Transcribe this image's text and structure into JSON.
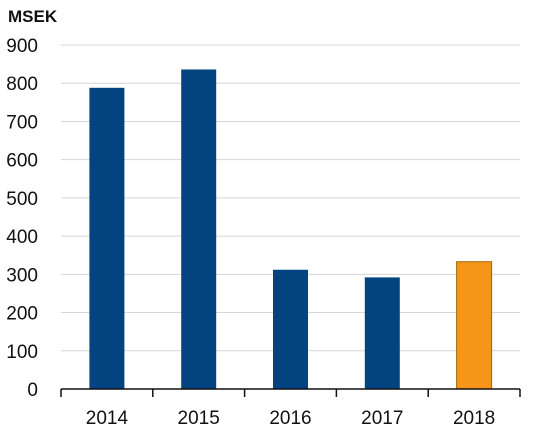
{
  "chart_data": {
    "type": "bar",
    "title": "",
    "unit_label": "MSEK",
    "xlabel": "",
    "ylabel": "",
    "categories": [
      "2014",
      "2015",
      "2016",
      "2017",
      "2018"
    ],
    "values": [
      788,
      836,
      312,
      292,
      333
    ],
    "ylim": [
      0,
      900
    ],
    "yticks": [
      0,
      100,
      200,
      300,
      400,
      500,
      600,
      700,
      800,
      900
    ],
    "grid": true,
    "legend": "none",
    "colors": {
      "default": "#03437f",
      "highlight": "#f5961b",
      "highlight_index": 4
    }
  }
}
